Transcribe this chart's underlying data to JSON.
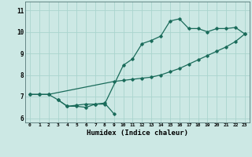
{
  "xlabel": "Humidex (Indice chaleur)",
  "background_color": "#cce8e4",
  "grid_color": "#aad4ce",
  "line_color": "#1a6b5a",
  "line1_x": [
    0,
    1,
    2,
    3,
    4,
    5,
    6,
    7,
    8,
    10,
    11,
    12,
    13,
    14,
    15,
    16,
    17,
    18,
    19,
    20,
    21,
    22,
    23
  ],
  "line1_y": [
    7.1,
    7.1,
    7.1,
    6.85,
    6.55,
    6.55,
    6.5,
    6.65,
    6.65,
    8.45,
    8.75,
    9.45,
    9.6,
    9.8,
    10.5,
    10.6,
    10.15,
    10.15,
    10.0,
    10.15,
    10.15,
    10.2,
    9.9
  ],
  "line2_x": [
    0,
    1,
    2,
    9,
    10,
    11,
    12,
    13,
    14,
    15,
    16,
    17,
    18,
    19,
    20,
    21,
    22,
    23
  ],
  "line2_y": [
    7.1,
    7.1,
    7.1,
    7.7,
    7.75,
    7.8,
    7.85,
    7.9,
    8.0,
    8.15,
    8.3,
    8.5,
    8.7,
    8.9,
    9.1,
    9.3,
    9.55,
    9.9
  ],
  "line3_x": [
    3,
    4,
    5,
    6,
    7,
    8,
    9
  ],
  "line3_y": [
    6.85,
    6.55,
    6.6,
    6.65,
    6.65,
    6.7,
    6.2
  ],
  "xlim": [
    -0.5,
    23.5
  ],
  "ylim": [
    5.8,
    11.4
  ],
  "xticks": [
    0,
    1,
    2,
    3,
    4,
    5,
    6,
    7,
    8,
    9,
    10,
    11,
    12,
    13,
    14,
    15,
    16,
    17,
    18,
    19,
    20,
    21,
    22,
    23
  ],
  "yticks": [
    6,
    7,
    8,
    9,
    10,
    11
  ]
}
